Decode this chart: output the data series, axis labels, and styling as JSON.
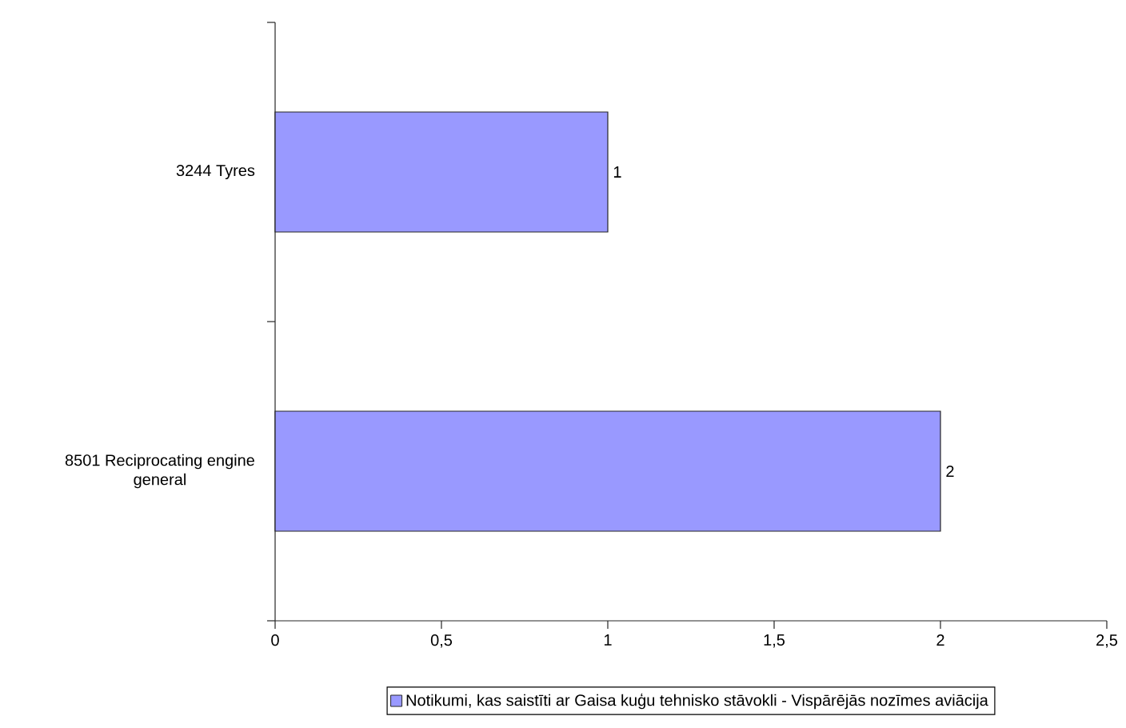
{
  "chart_data": {
    "type": "bar",
    "orientation": "horizontal",
    "categories": [
      "3244 Tyres",
      "8501 Reciprocating engine general"
    ],
    "series": [
      {
        "name": "Notikumi, kas saistīti ar Gaisa kuģu tehnisko stāvokli - Vispārējās nozīmes aviācija",
        "color": "#9999ff",
        "values": [
          1,
          2
        ]
      }
    ],
    "xlim": [
      0,
      2.5
    ],
    "xticks": [
      0,
      {
        "value": 0.5,
        "label": "0,5"
      },
      1,
      {
        "value": 1.5,
        "label": "1,5"
      },
      2,
      {
        "value": 2.5,
        "label": "2,5"
      }
    ],
    "data_labels": true,
    "legend": "bottom"
  }
}
